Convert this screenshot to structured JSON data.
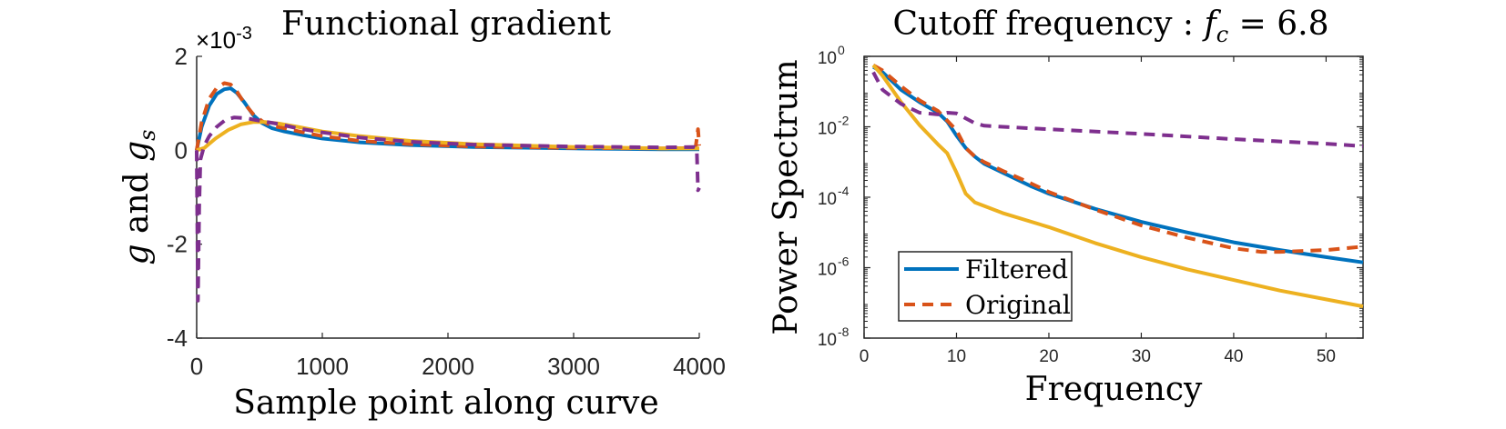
{
  "chart_data": [
    {
      "type": "line",
      "title": "Functional gradient",
      "xlabel": "Sample point along curve",
      "ylabel_parts": [
        "g",
        " and ",
        "g",
        "s"
      ],
      "y_multiplier": "×10",
      "y_multiplier_exp": "-3",
      "xlim": [
        0,
        4000
      ],
      "ylim": [
        -4,
        2
      ],
      "xticks": [
        0,
        1000,
        2000,
        3000,
        4000
      ],
      "xtick_labels": [
        "0",
        "1000",
        "2000",
        "3000",
        "4000"
      ],
      "yticks": [
        2,
        0,
        -2,
        -4
      ],
      "ytick_labels": [
        "2",
        "0",
        "-2",
        "-4"
      ],
      "series": [
        {
          "name": "blue",
          "color": "#0072BD",
          "dash": "solid",
          "x": [
            0,
            40,
            100,
            160,
            220,
            270,
            320,
            380,
            450,
            520,
            600,
            700,
            850,
            1000,
            1300,
            1700,
            2200,
            3000,
            3700,
            4000
          ],
          "y": [
            0,
            0.5,
            0.95,
            1.2,
            1.3,
            1.32,
            1.22,
            1.02,
            0.75,
            0.58,
            0.47,
            0.4,
            0.32,
            0.25,
            0.17,
            0.11,
            0.07,
            0.04,
            0.02,
            0.02
          ]
        },
        {
          "name": "red",
          "color": "#D95319",
          "dash": "dashed",
          "x": [
            0,
            40,
            100,
            160,
            220,
            270,
            320,
            380,
            450,
            520,
            600,
            700,
            850,
            1000,
            1300,
            1700,
            2200,
            3000,
            3700,
            3970,
            3990,
            4000
          ],
          "y": [
            0,
            0.6,
            1.1,
            1.33,
            1.43,
            1.4,
            1.25,
            1.0,
            0.77,
            0.62,
            0.52,
            0.47,
            0.38,
            0.3,
            0.2,
            0.13,
            0.08,
            0.05,
            0.04,
            0.05,
            0.45,
            0.1
          ]
        },
        {
          "name": "yellow",
          "color": "#EDB120",
          "dash": "solid",
          "x": [
            0,
            60,
            150,
            250,
            350,
            450,
            550,
            650,
            800,
            1000,
            1300,
            1700,
            2200,
            3000,
            3700,
            4000
          ],
          "y": [
            0,
            0.05,
            0.25,
            0.43,
            0.55,
            0.6,
            0.6,
            0.57,
            0.5,
            0.4,
            0.3,
            0.2,
            0.13,
            0.07,
            0.04,
            0.04
          ]
        },
        {
          "name": "purple",
          "color": "#7E2F8E",
          "dash": "dashed",
          "x": [
            0,
            10,
            20,
            30,
            60,
            100,
            160,
            230,
            300,
            400,
            500,
            650,
            800,
            1000,
            1300,
            1700,
            2200,
            3000,
            3700,
            3960,
            3980,
            3990,
            4000
          ],
          "y": [
            0,
            -3.2,
            -1.2,
            -0.2,
            0.1,
            0.3,
            0.5,
            0.65,
            0.7,
            0.68,
            0.63,
            0.56,
            0.47,
            0.38,
            0.27,
            0.18,
            0.12,
            0.08,
            0.06,
            0.07,
            0.05,
            -0.85,
            -0.8
          ]
        }
      ]
    },
    {
      "type": "line",
      "title_prefix": "Cutoff frequency : ",
      "title_var": "f",
      "title_sub": "c",
      "title_suffix": " = 6.8",
      "xlabel": "Frequency",
      "ylabel": "Power Spectrum",
      "yscale": "log",
      "xlim": [
        0,
        54
      ],
      "ylim_log10": [
        -8,
        0
      ],
      "xticks": [
        0,
        10,
        20,
        30,
        40,
        50
      ],
      "xtick_labels": [
        "0",
        "10",
        "20",
        "30",
        "40",
        "50"
      ],
      "yticks_log10": [
        0,
        -2,
        -4,
        -6,
        -8
      ],
      "ytick_exps": [
        "0",
        "-2",
        "-4",
        "-6",
        "-8"
      ],
      "ytick_base": "10",
      "legend": {
        "position": "bottom-left",
        "entries": [
          "Filtered",
          "Original"
        ]
      },
      "series": [
        {
          "name": "Filtered",
          "color": "#0072BD",
          "dash": "solid",
          "x": [
            1,
            2,
            4,
            6,
            8,
            9,
            10,
            11,
            12,
            13,
            15,
            18,
            20,
            25,
            30,
            35,
            40,
            45,
            50,
            54
          ],
          "log10y": [
            -0.3,
            -0.45,
            -0.95,
            -1.3,
            -1.6,
            -1.85,
            -2.25,
            -2.6,
            -2.85,
            -3.05,
            -3.3,
            -3.68,
            -3.9,
            -4.33,
            -4.7,
            -5.0,
            -5.28,
            -5.5,
            -5.7,
            -5.85
          ]
        },
        {
          "name": "Original",
          "color": "#D95319",
          "dash": "dashed",
          "x": [
            1,
            2,
            4,
            6,
            8,
            10,
            11,
            12,
            13,
            15,
            18,
            20,
            25,
            30,
            35,
            40,
            43,
            45,
            50,
            54
          ],
          "log10y": [
            -0.25,
            -0.4,
            -0.85,
            -1.25,
            -1.55,
            -2.1,
            -2.6,
            -2.85,
            -3.0,
            -3.25,
            -3.6,
            -3.85,
            -4.35,
            -4.8,
            -5.15,
            -5.45,
            -5.55,
            -5.55,
            -5.5,
            -5.4
          ]
        },
        {
          "name": "yellow",
          "color": "#EDB120",
          "dash": "solid",
          "x": [
            1,
            2,
            4,
            6,
            8,
            9,
            10,
            11,
            12,
            15,
            20,
            25,
            30,
            35,
            40,
            45,
            50,
            54
          ],
          "log10y": [
            -0.25,
            -0.55,
            -1.3,
            -1.95,
            -2.5,
            -2.75,
            -3.3,
            -3.9,
            -4.15,
            -4.45,
            -4.85,
            -5.3,
            -5.7,
            -6.05,
            -6.35,
            -6.65,
            -6.9,
            -7.1
          ]
        },
        {
          "name": "purple",
          "color": "#7E2F8E",
          "dash": "dashed",
          "x": [
            1,
            2,
            4,
            6,
            8,
            9,
            10,
            12,
            13,
            15,
            20,
            30,
            40,
            50,
            54
          ],
          "log10y": [
            -0.45,
            -0.95,
            -1.35,
            -1.6,
            -1.65,
            -1.6,
            -1.62,
            -1.9,
            -1.97,
            -2.0,
            -2.07,
            -2.2,
            -2.35,
            -2.48,
            -2.55
          ]
        }
      ]
    }
  ]
}
